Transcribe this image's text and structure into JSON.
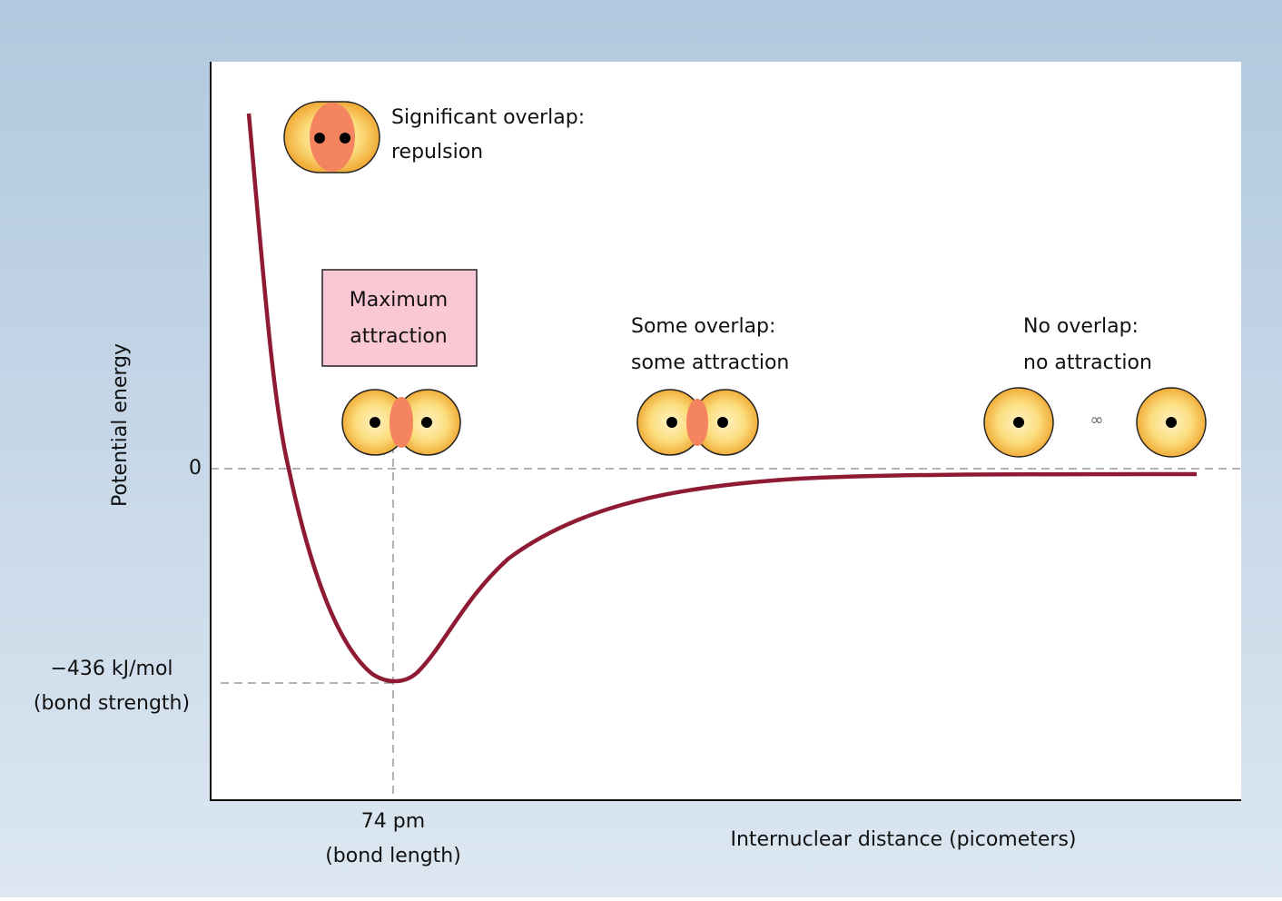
{
  "y_axis": {
    "label": "Potential energy",
    "zero": "0",
    "minimum": {
      "value": "−436 kJ/mol",
      "note": "(bond strength)"
    }
  },
  "x_axis": {
    "label": "Internuclear distance (picometers)",
    "minimum": {
      "value": "74 pm",
      "note": "(bond length)"
    }
  },
  "annotations": [
    {
      "lines": [
        "Significant overlap:",
        "repulsion"
      ]
    },
    {
      "lines": [
        "Maximum",
        "attraction"
      ]
    },
    {
      "lines": [
        "Some overlap:",
        "some attraction"
      ]
    },
    {
      "lines": [
        "No overlap:",
        "no attraction"
      ]
    }
  ],
  "infinity": "∞"
}
